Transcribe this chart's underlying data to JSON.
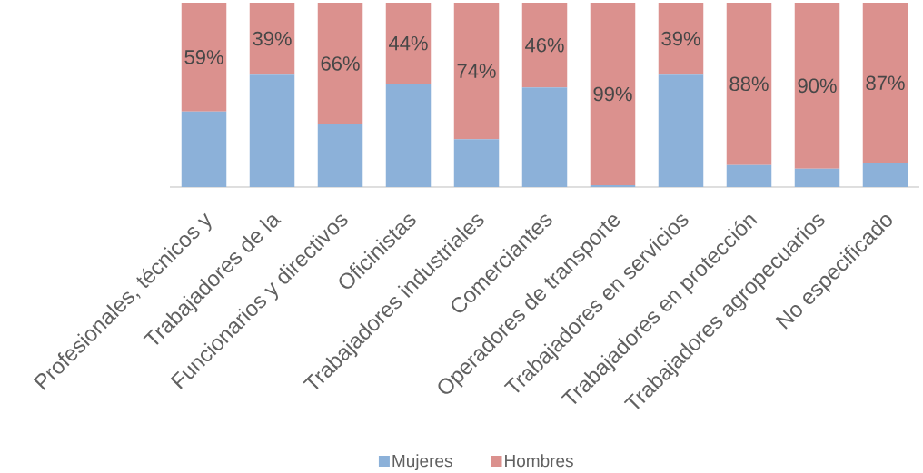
{
  "chart_data": {
    "type": "bar",
    "stacked": true,
    "categories": [
      "Profesionales, técnicos y",
      "Trabajadores de la",
      "Funcionarios y directivos",
      "Oficinistas",
      "Trabajadores industriales",
      "Comerciantes",
      "Operadores de transporte",
      "Trabajadores en servicios",
      "Trabajadores en protección",
      "Trabajadores agropecuarios",
      "No especificado"
    ],
    "series": [
      {
        "name": "Mujeres",
        "color": "#8cb1d9",
        "values": [
          41,
          61,
          34,
          56,
          26,
          54,
          1,
          61,
          12,
          10,
          13
        ]
      },
      {
        "name": "Hombres",
        "color": "#db918e",
        "values": [
          59,
          39,
          66,
          44,
          74,
          46,
          99,
          39,
          88,
          90,
          87
        ],
        "value_labels": [
          "59%",
          "39%",
          "66%",
          "44%",
          "74%",
          "46%",
          "99%",
          "39%",
          "88%",
          "90%",
          "87%"
        ]
      }
    ],
    "legend": "bottom"
  }
}
